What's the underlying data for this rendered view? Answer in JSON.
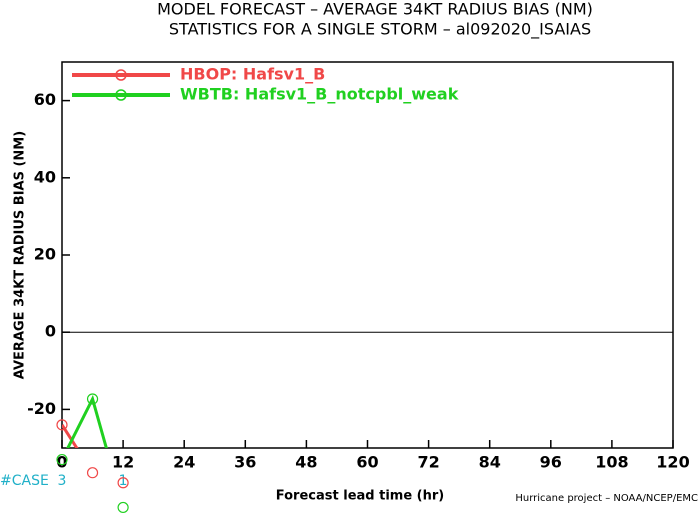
{
  "chart_data": {
    "type": "line",
    "title": "MODEL FORECAST – AVERAGE 34KT RADIUS BIAS (NM)",
    "subtitle": "STATISTICS FOR A SINGLE STORM – al092020_ISAIAS",
    "y_label": "AVERAGE 34KT RADIUS BIAS (NM)",
    "x_label": "Forecast lead time (hr)",
    "footer": "Hurricane project – NOAA/NCEP/EMC",
    "case_label": "#CASE",
    "case_counts": [
      3,
      null,
      1
    ],
    "x": [
      0,
      6,
      12
    ],
    "series": [
      {
        "name": "HBOP: Hafsv1_B",
        "color": "#f04848",
        "values": [
          -24,
          -36.4,
          -39
        ]
      },
      {
        "name": "WBTB: Hafsv1_B_notcpbl_weak",
        "color": "#20d020",
        "values": [
          -33,
          -17.3,
          -45.4
        ]
      }
    ],
    "xlim": [
      0,
      120
    ],
    "xticks": [
      0,
      12,
      24,
      36,
      48,
      60,
      72,
      84,
      96,
      108,
      120
    ],
    "ylim": [
      -30,
      70
    ],
    "yticks": [
      -20,
      0,
      20,
      40,
      60
    ],
    "zero_line": true,
    "legend": "upper left"
  }
}
